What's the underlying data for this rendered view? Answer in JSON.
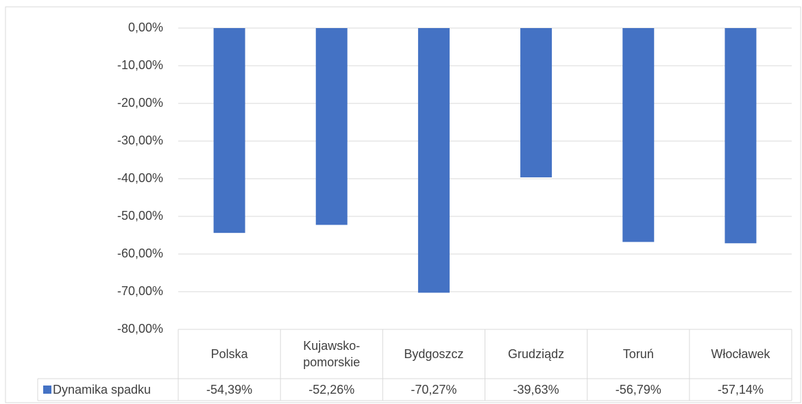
{
  "chart_data": {
    "type": "bar",
    "categories": [
      "Polska",
      "Kujawsko-pomorskie",
      "Bydgoszcz",
      "Grudziądz",
      "Toruń",
      "Włocławek"
    ],
    "series": [
      {
        "name": "Dynamika spadku",
        "color": "#4472c4",
        "values": [
          -54.39,
          -52.26,
          -70.27,
          -39.63,
          -56.79,
          -57.14
        ],
        "value_labels": [
          "-54,39%",
          "-52,26%",
          "-70,27%",
          "-39,63%",
          "-56,79%",
          "-57,14%"
        ]
      }
    ],
    "ylim": [
      -80,
      0
    ],
    "yticks": [
      {
        "value": 0,
        "label": "0,00%"
      },
      {
        "value": -10,
        "label": "-10,00%"
      },
      {
        "value": -20,
        "label": "-20,00%"
      },
      {
        "value": -30,
        "label": "-30,00%"
      },
      {
        "value": -40,
        "label": "-40,00%"
      },
      {
        "value": -50,
        "label": "-50,00%"
      },
      {
        "value": -60,
        "label": "-60,00%"
      },
      {
        "value": -70,
        "label": "-70,00%"
      },
      {
        "value": -80,
        "label": "-80,00%"
      }
    ],
    "grid": true,
    "legend": "table"
  }
}
